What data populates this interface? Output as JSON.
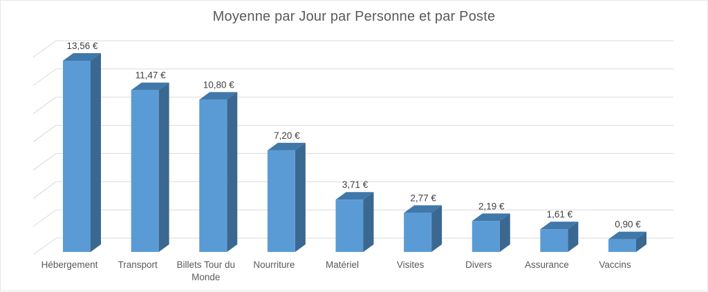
{
  "chart_data": {
    "type": "bar",
    "variant": "3d-column",
    "title": "Moyenne par Jour par Personne et par Poste",
    "categories": [
      "Hébergement",
      "Transport",
      "Billets Tour du Monde",
      "Nourriture",
      "Matériel",
      "Visites",
      "Divers",
      "Assurance",
      "Vaccins"
    ],
    "values": [
      13.56,
      11.47,
      10.8,
      7.2,
      3.71,
      2.77,
      2.19,
      1.61,
      0.9
    ],
    "value_labels": [
      "13,56 €",
      "11,47 €",
      "10,80 €",
      "7,20 €",
      "3,71 €",
      "2,77 €",
      "2,19 €",
      "1,61 €",
      "0,90 €"
    ],
    "xlabel": "",
    "ylabel": "",
    "ylim": [
      0,
      14
    ],
    "y_major_unit": 2,
    "grid": true,
    "legend": "none",
    "colors": {
      "bar_front": "#5B9BD5",
      "bar_top": "#4178AA",
      "bar_side": "#3A6890",
      "gridline": "#D9D9D9",
      "title_text": "#595959",
      "axis_text": "#595959",
      "value_label_text": "#404040",
      "background": "#FFFFFF"
    }
  }
}
